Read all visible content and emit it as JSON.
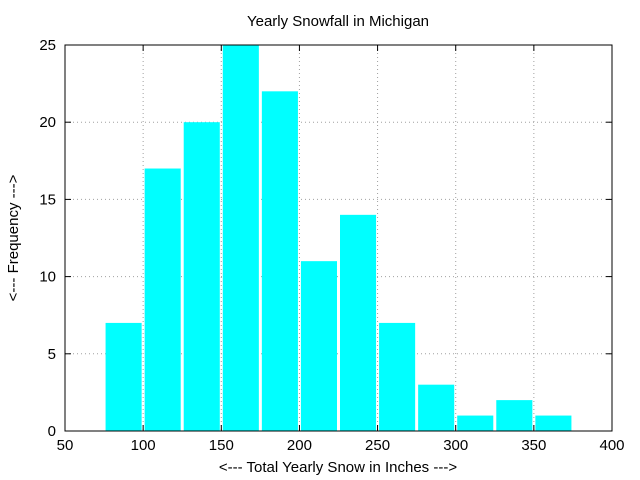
{
  "chart_data": {
    "type": "bar",
    "title": "Yearly Snowfall in Michigan",
    "xlabel": "<--- Total Yearly Snow in Inches --->",
    "ylabel": "<--- Frequency --->",
    "xlim": [
      50,
      400
    ],
    "ylim": [
      0,
      25
    ],
    "xticks": [
      50,
      100,
      150,
      200,
      250,
      300,
      350,
      400
    ],
    "yticks": [
      0,
      5,
      10,
      15,
      20,
      25
    ],
    "grid": true,
    "bar_color": "#00ffff",
    "bin_width": 25,
    "bins": [
      {
        "x": 87.5,
        "value": 7
      },
      {
        "x": 112.5,
        "value": 17
      },
      {
        "x": 137.5,
        "value": 20
      },
      {
        "x": 162.5,
        "value": 25
      },
      {
        "x": 187.5,
        "value": 22
      },
      {
        "x": 212.5,
        "value": 11
      },
      {
        "x": 237.5,
        "value": 14
      },
      {
        "x": 262.5,
        "value": 7
      },
      {
        "x": 287.5,
        "value": 3
      },
      {
        "x": 312.5,
        "value": 1
      },
      {
        "x": 337.5,
        "value": 2
      },
      {
        "x": 362.5,
        "value": 1
      }
    ]
  }
}
